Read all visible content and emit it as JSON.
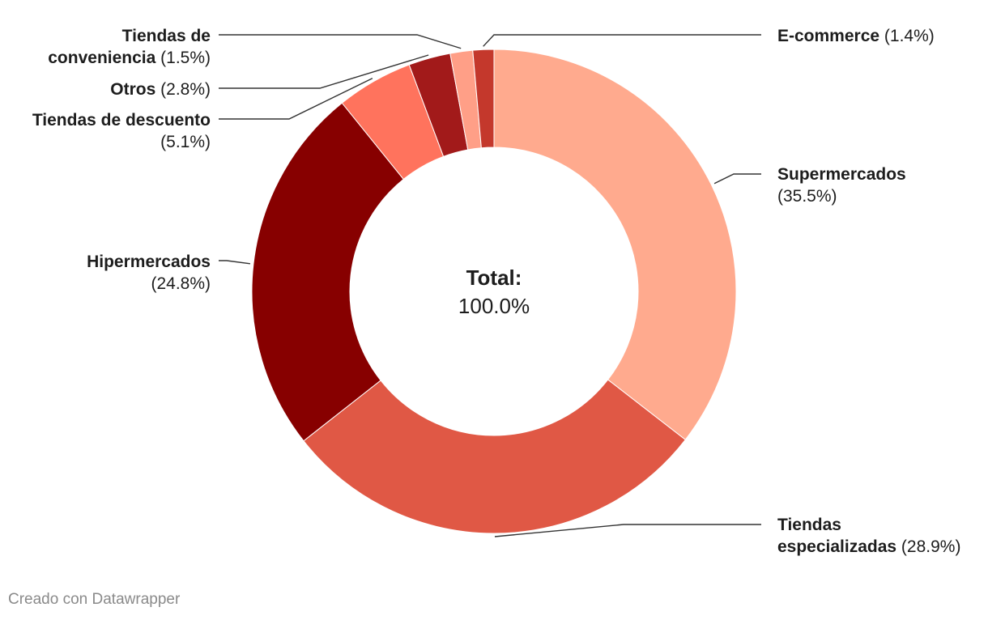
{
  "chart_data": {
    "type": "pie",
    "variant": "donut",
    "center_label": {
      "title": "Total:",
      "value": "100.0%"
    },
    "slices": [
      {
        "name": "Supermercados",
        "value": 35.5,
        "value_label": "(35.5%)",
        "color": "#ffaa8e",
        "label_lines": [
          [
            "Supermercados"
          ],
          [
            "",
            "(35.5%)"
          ]
        ]
      },
      {
        "name": "Tiendas especializadas",
        "value": 28.9,
        "value_label": "(28.9%)",
        "color": "#e05845",
        "label_lines": [
          [
            "Tiendas"
          ],
          [
            "especializadas",
            " (28.9%)"
          ]
        ]
      },
      {
        "name": "Hipermercados",
        "value": 24.8,
        "value_label": "(24.8%)",
        "color": "#870000",
        "label_lines": [
          [
            "Hipermercados"
          ],
          [
            "",
            "(24.8%)"
          ]
        ]
      },
      {
        "name": "Tiendas de descuento",
        "value": 5.1,
        "value_label": "(5.1%)",
        "color": "#ff735d",
        "label_lines": [
          [
            "Tiendas de descuento"
          ],
          [
            "",
            "(5.1%)"
          ]
        ]
      },
      {
        "name": "Otros",
        "value": 2.8,
        "value_label": "(2.8%)",
        "color": "#a21a1a",
        "label_lines": [
          [
            "Otros",
            " (2.8%)"
          ]
        ]
      },
      {
        "name": "Tiendas de conveniencia",
        "value": 1.5,
        "value_label": "(1.5%)",
        "color": "#ff9f87",
        "label_lines": [
          [
            "Tiendas de"
          ],
          [
            "conveniencia",
            " (1.5%)"
          ]
        ]
      },
      {
        "name": "E-commerce",
        "value": 1.4,
        "value_label": "(1.4%)",
        "color": "#c4382c",
        "label_lines": [
          [
            "E-commerce",
            " (1.4%)"
          ]
        ]
      }
    ]
  },
  "footer": {
    "credit": "Creado con Datawrapper"
  }
}
